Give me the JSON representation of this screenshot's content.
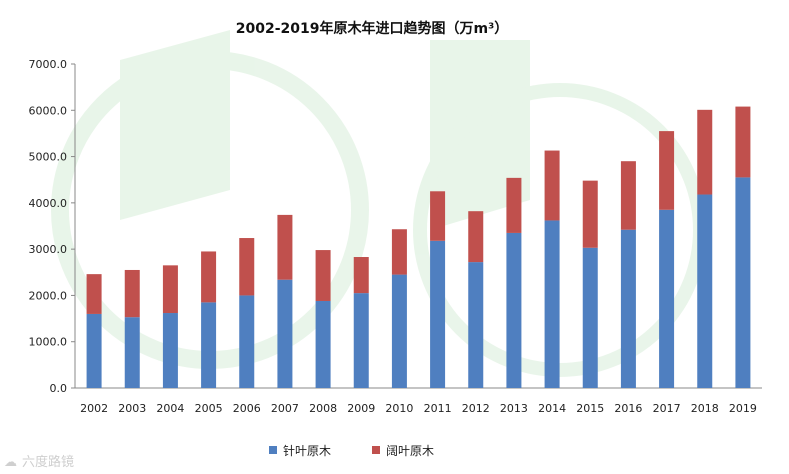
{
  "chart_data": {
    "type": "bar",
    "stacked": true,
    "title": "2002-2019年原木年进口趋势图（万m³）",
    "categories": [
      "2002",
      "2003",
      "2004",
      "2005",
      "2006",
      "2007",
      "2008",
      "2009",
      "2010",
      "2011",
      "2012",
      "2013",
      "2014",
      "2015",
      "2016",
      "2017",
      "2018",
      "2019"
    ],
    "series": [
      {
        "name": "针叶原木",
        "color": "#4f7fc0",
        "values": [
          1600,
          1530,
          1620,
          1850,
          2000,
          2340,
          1880,
          2050,
          2450,
          3180,
          2720,
          3350,
          3620,
          3030,
          3420,
          3850,
          4180,
          4550
        ]
      },
      {
        "name": "阔叶原木",
        "color": "#c0504d",
        "values": [
          860,
          1020,
          1030,
          1100,
          1240,
          1400,
          1100,
          780,
          980,
          1070,
          1100,
          1190,
          1510,
          1450,
          1480,
          1700,
          1830,
          1530
        ]
      }
    ],
    "ylim": [
      0,
      7000
    ],
    "yticks": [
      "0.0",
      "1000.0",
      "2000.0",
      "3000.0",
      "4000.0",
      "5000.0",
      "6000.0",
      "7000.0"
    ],
    "xlabel": "",
    "ylabel": "",
    "legend_position": "bottom"
  },
  "watermark": "六度路镜"
}
